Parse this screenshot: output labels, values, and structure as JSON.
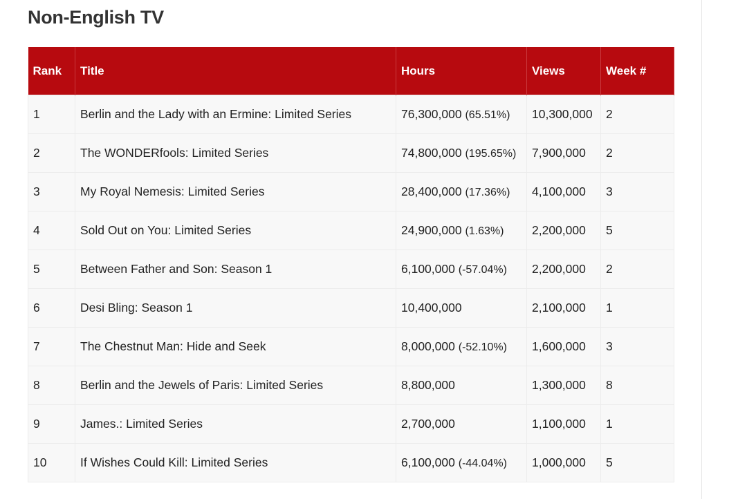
{
  "header": {
    "title": "Non-English TV"
  },
  "table": {
    "columns": [
      "Rank",
      "Title",
      "Hours",
      "Views",
      "Week #"
    ],
    "rows": [
      {
        "rank": 1,
        "title": "Berlin and the Lady with an Ermine: Limited Series",
        "hours": "76,300,000",
        "change": "(65.51%)",
        "views": "10,300,000",
        "week": 2
      },
      {
        "rank": 2,
        "title": "The WONDERfools: Limited Series",
        "hours": "74,800,000",
        "change": "(195.65%)",
        "views": "7,900,000",
        "week": 2
      },
      {
        "rank": 3,
        "title": "My Royal Nemesis: Limited Series",
        "hours": "28,400,000",
        "change": "(17.36%)",
        "views": "4,100,000",
        "week": 3
      },
      {
        "rank": 4,
        "title": "Sold Out on You: Limited Series",
        "hours": "24,900,000",
        "change": "(1.63%)",
        "views": "2,200,000",
        "week": 5
      },
      {
        "rank": 5,
        "title": "Between Father and Son: Season 1",
        "hours": "6,100,000",
        "change": "(-57.04%)",
        "views": "2,200,000",
        "week": 2
      },
      {
        "rank": 6,
        "title": "Desi Bling: Season 1",
        "hours": "10,400,000",
        "views": "2,100,000",
        "week": 1
      },
      {
        "rank": 7,
        "title": "The Chestnut Man: Hide and Seek",
        "hours": "8,000,000",
        "change": "(-52.10%)",
        "views": "1,600,000",
        "week": 3
      },
      {
        "rank": 8,
        "title": "Berlin and the Jewels of Paris: Limited Series",
        "hours": "8,800,000",
        "views": "1,300,000",
        "week": 8
      },
      {
        "rank": 9,
        "title": "James.: Limited Series",
        "hours": "2,700,000",
        "views": "1,100,000",
        "week": 1
      },
      {
        "rank": 10,
        "title": "If Wishes Could Kill: Limited Series",
        "hours": "6,100,000",
        "change": "(-44.04%)",
        "views": "1,000,000",
        "week": 5
      }
    ]
  }
}
